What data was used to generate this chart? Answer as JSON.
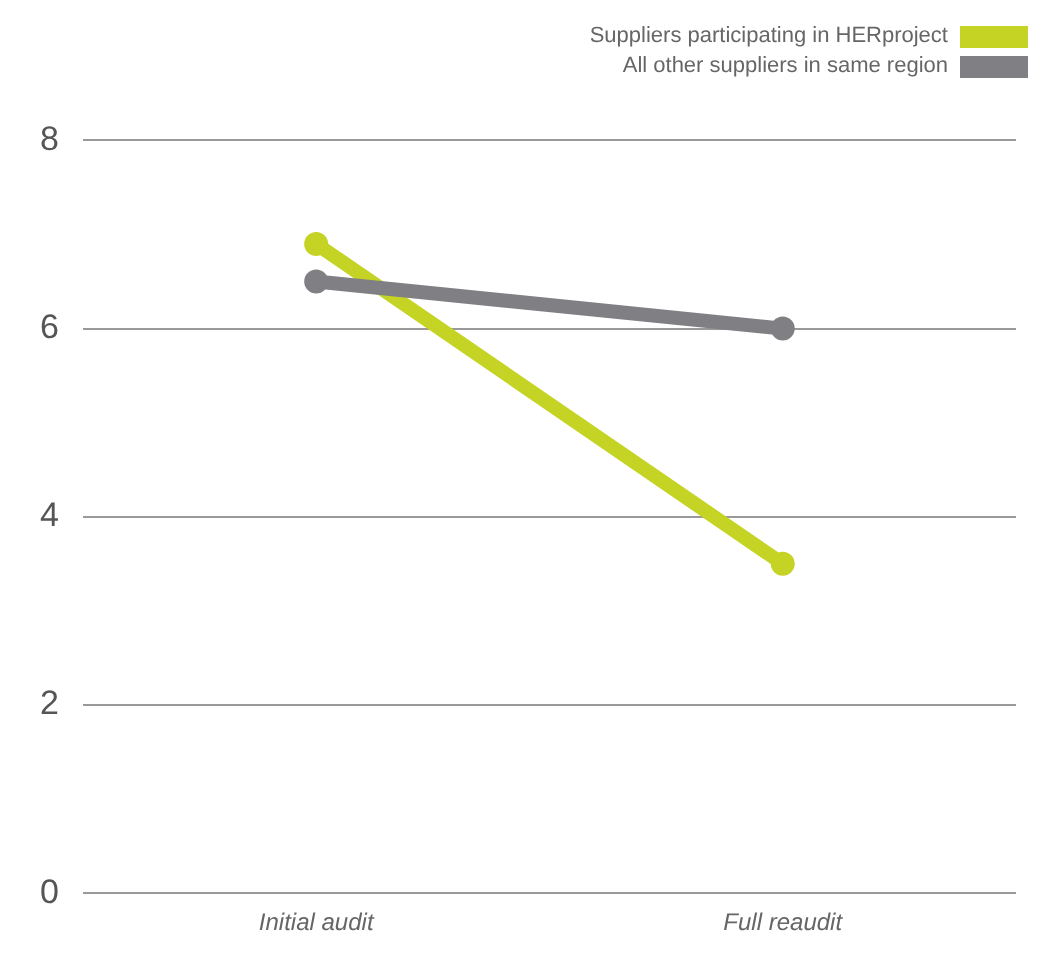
{
  "chart_data": {
    "type": "line",
    "categories": [
      "Initial audit",
      "Full reaudit"
    ],
    "series": [
      {
        "name": "Suppliers participating in HERproject",
        "color": "#c5d424",
        "values": [
          6.9,
          3.5
        ]
      },
      {
        "name": "All other suppliers in same region",
        "color": "#808084",
        "values": [
          6.5,
          6.0
        ]
      }
    ],
    "ylim": [
      0,
      8
    ],
    "yticks": [
      0,
      2,
      4,
      6,
      8
    ],
    "grid": "y",
    "legend": "top right",
    "marker": "circle",
    "line_style": "solid"
  }
}
